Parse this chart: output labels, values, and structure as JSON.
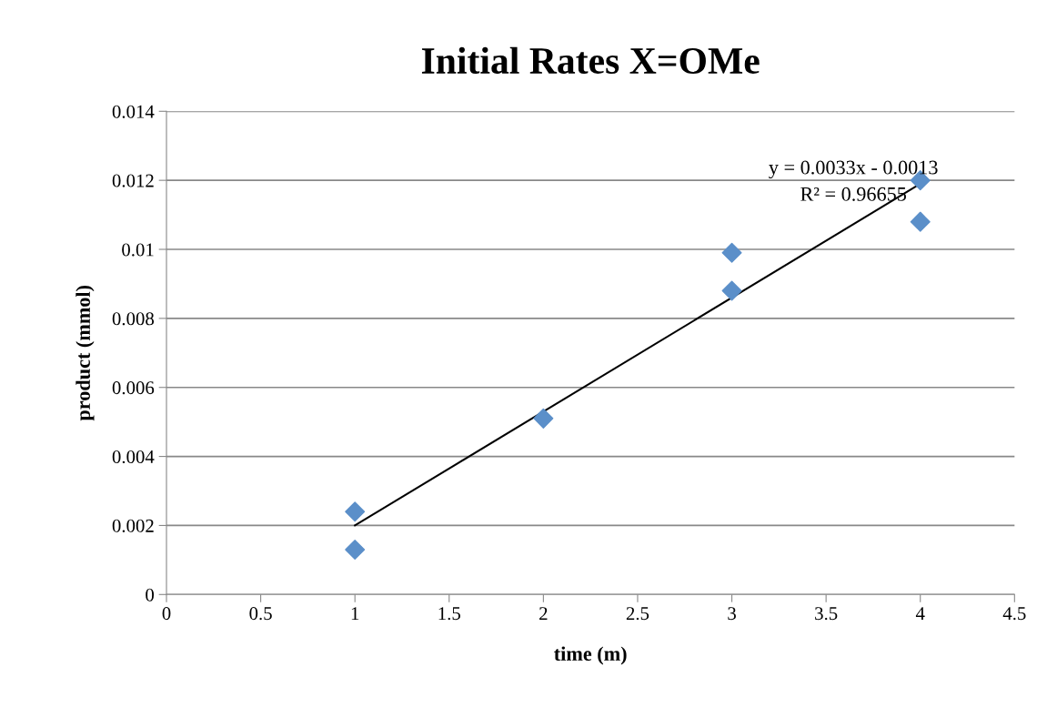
{
  "chart_data": {
    "type": "scatter",
    "title": "Initial Rates X=OMe",
    "xlabel": "time (m)",
    "ylabel": "product (mmol)",
    "series": [
      {
        "color": "#5b8fc9",
        "x": [
          1,
          1,
          2,
          3,
          3,
          4,
          4
        ],
        "values": [
          0.0024,
          0.0013,
          0.0051,
          0.0099,
          0.0088,
          0.012,
          0.0108
        ],
        "marker": "diamond"
      },
      {
        "type": "line",
        "color": "#000000",
        "x": [
          1,
          4
        ],
        "values": [
          0.002,
          0.0119
        ],
        "marker": "none",
        "line_style": "solid"
      }
    ],
    "annotations": [
      "y = 0.0033x - 0.0013",
      "R² = 0.96655"
    ],
    "xlim": [
      0,
      4.5
    ],
    "xticks": [
      0,
      0.5,
      1,
      1.5,
      2,
      2.5,
      3,
      3.5,
      4,
      4.5
    ],
    "ylim": [
      0,
      0.014
    ],
    "yticks": [
      0,
      0.002,
      0.004,
      0.006,
      0.008,
      0.01,
      0.012,
      0.014
    ],
    "grid": "y",
    "legend": false
  }
}
